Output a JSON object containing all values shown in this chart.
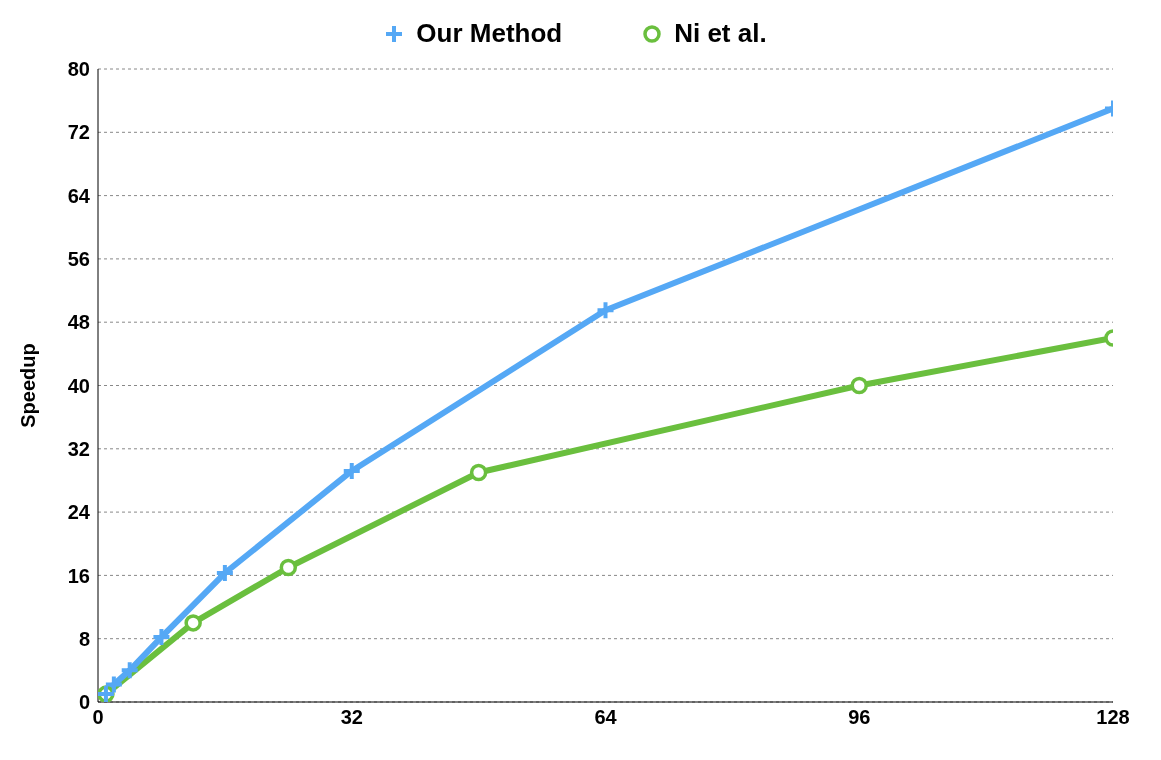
{
  "chart_data": {
    "type": "line",
    "ylabel": "Speedup",
    "xlim": [
      0,
      128
    ],
    "xticks": [
      0,
      32,
      64,
      96,
      128
    ],
    "ylim": [
      0,
      80
    ],
    "yticks": [
      0,
      8,
      16,
      24,
      32,
      40,
      48,
      56,
      64,
      72,
      80
    ],
    "grid": "y",
    "legend": "top",
    "line_style": "solid",
    "series": [
      {
        "name": "Our Method",
        "color": "#55a8f5",
        "marker": "cross",
        "x": [
          1,
          2,
          4,
          8,
          16,
          32,
          64,
          128
        ],
        "values": [
          1,
          2.2,
          4,
          8.2,
          16.3,
          29.2,
          49.5,
          75
        ]
      },
      {
        "name": "Ni et al.",
        "color": "#6abf3e",
        "marker": "circle",
        "x": [
          1,
          12,
          24,
          48,
          96,
          128
        ],
        "values": [
          1,
          10,
          17,
          29,
          40,
          46
        ]
      }
    ]
  }
}
